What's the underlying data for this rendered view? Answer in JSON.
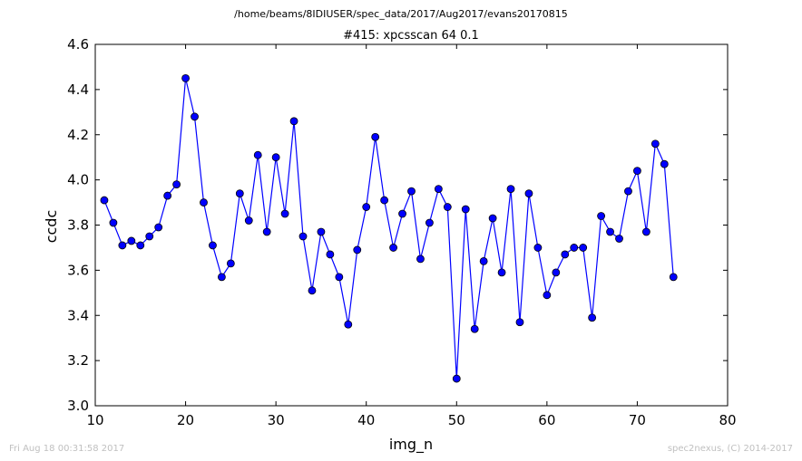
{
  "footer": {
    "left": "Fri Aug 18 00:31:58 2017",
    "right": "spec2nexus, (C) 2014-2017"
  },
  "colors": {
    "series": "#0000ff",
    "axes": "#000000",
    "footer": "#c0c0c0",
    "background": "#ffffff"
  },
  "chart_data": {
    "type": "line",
    "markers": "circle",
    "suptitle": "/home/beams/8IDIUSER/spec_data/2017/Aug2017/evans20170815",
    "title": "#415: xpcsscan 64 0.1",
    "xlabel": "img_n",
    "ylabel": "ccdc",
    "xlim": [
      10,
      80
    ],
    "ylim": [
      3.0,
      4.6
    ],
    "xticks": [
      "10",
      "20",
      "30",
      "40",
      "50",
      "60",
      "70",
      "80"
    ],
    "yticks": [
      "3.0",
      "3.2",
      "3.4",
      "3.6",
      "3.8",
      "4.0",
      "4.2",
      "4.4",
      "4.6"
    ],
    "grid": false,
    "series": [
      {
        "x": [
          11,
          12,
          13,
          14,
          15,
          16,
          17,
          18,
          19,
          20,
          21,
          22,
          23,
          24,
          25,
          26,
          27,
          28,
          29,
          30,
          31,
          32,
          33,
          34,
          35,
          36,
          37,
          38,
          39,
          40,
          41,
          42,
          43,
          44,
          45,
          46,
          47,
          48,
          49,
          50,
          51,
          52,
          53,
          54,
          55,
          56,
          57,
          58,
          59,
          60,
          61,
          62,
          63,
          64,
          65,
          66,
          67,
          68,
          69,
          70,
          71,
          72,
          73,
          74
        ],
        "values": [
          3.91,
          3.81,
          3.71,
          3.73,
          3.71,
          3.75,
          3.79,
          3.93,
          3.98,
          4.45,
          4.28,
          3.9,
          3.71,
          3.57,
          3.63,
          3.94,
          3.82,
          4.11,
          3.77,
          4.1,
          3.85,
          4.26,
          3.75,
          3.51,
          3.77,
          3.67,
          3.57,
          3.36,
          3.69,
          3.88,
          4.19,
          3.91,
          3.7,
          3.85,
          3.95,
          3.65,
          3.81,
          3.96,
          3.88,
          3.12,
          3.87,
          3.34,
          3.64,
          3.83,
          3.59,
          3.96,
          3.37,
          3.94,
          3.7,
          3.49,
          3.59,
          3.67,
          3.7,
          3.7,
          3.39,
          3.84,
          3.77,
          3.74,
          3.95,
          4.04,
          3.77,
          4.16,
          4.07,
          3.57
        ]
      }
    ]
  }
}
